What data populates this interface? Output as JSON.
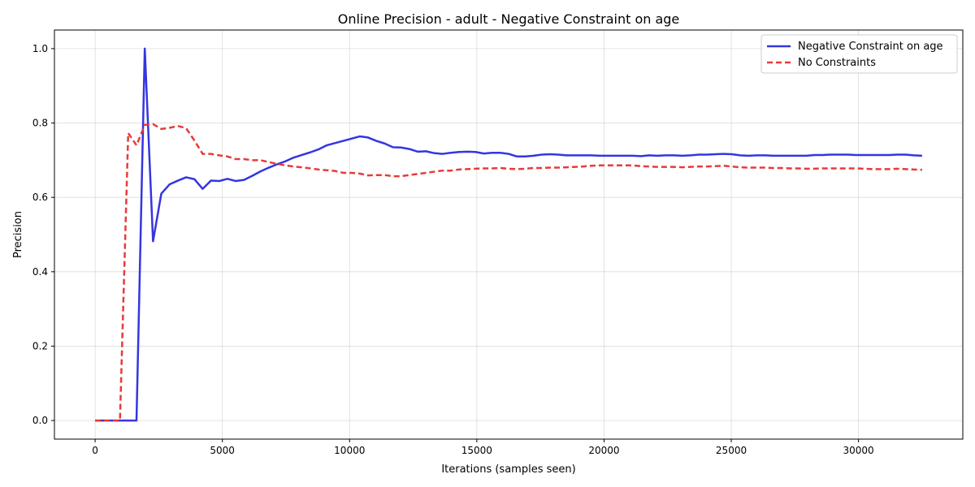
{
  "chart_data": {
    "type": "line",
    "title": "Online Precision - adult - Negative Constraint on age",
    "xlabel": "Iterations (samples seen)",
    "ylabel": "Precision",
    "xlim": [
      -1600,
      34100
    ],
    "ylim": [
      -0.05,
      1.05
    ],
    "xticks": [
      0,
      5000,
      10000,
      15000,
      20000,
      25000,
      30000
    ],
    "yticks": [
      0.0,
      0.2,
      0.4,
      0.6,
      0.8,
      1.0
    ],
    "xtick_labels": [
      "0",
      "5000",
      "10000",
      "15000",
      "20000",
      "25000",
      "30000"
    ],
    "ytick_labels": [
      "0.0",
      "0.2",
      "0.4",
      "0.6",
      "0.8",
      "1.0"
    ],
    "grid": true,
    "legend_position": "top-right",
    "series": [
      {
        "name": "Negative Constraint on age",
        "color": "#3535e0",
        "style": "solid",
        "points": [
          [
            0,
            0
          ],
          [
            325,
            0
          ],
          [
            650,
            0
          ],
          [
            975,
            0
          ],
          [
            1300,
            0
          ],
          [
            1625,
            0
          ],
          [
            1950,
            1.0
          ],
          [
            2275,
            0.482
          ],
          [
            2600,
            0.61
          ],
          [
            2925,
            0.635
          ],
          [
            3250,
            0.645
          ],
          [
            3575,
            0.654
          ],
          [
            3900,
            0.649
          ],
          [
            4225,
            0.623
          ],
          [
            4550,
            0.645
          ],
          [
            4875,
            0.644
          ],
          [
            5200,
            0.65
          ],
          [
            5525,
            0.644
          ],
          [
            5850,
            0.647
          ],
          [
            6175,
            0.658
          ],
          [
            6500,
            0.67
          ],
          [
            6825,
            0.68
          ],
          [
            7150,
            0.689
          ],
          [
            7475,
            0.697
          ],
          [
            7800,
            0.707
          ],
          [
            8125,
            0.714
          ],
          [
            8450,
            0.721
          ],
          [
            8775,
            0.729
          ],
          [
            9100,
            0.74
          ],
          [
            9425,
            0.746
          ],
          [
            9750,
            0.752
          ],
          [
            10075,
            0.758
          ],
          [
            10400,
            0.764
          ],
          [
            10725,
            0.761
          ],
          [
            11050,
            0.752
          ],
          [
            11375,
            0.745
          ],
          [
            11700,
            0.735
          ],
          [
            12025,
            0.734
          ],
          [
            12350,
            0.73
          ],
          [
            12675,
            0.723
          ],
          [
            13000,
            0.724
          ],
          [
            13325,
            0.719
          ],
          [
            13650,
            0.717
          ],
          [
            13975,
            0.72
          ],
          [
            14300,
            0.722
          ],
          [
            14625,
            0.723
          ],
          [
            14950,
            0.722
          ],
          [
            15275,
            0.718
          ],
          [
            15600,
            0.72
          ],
          [
            15925,
            0.72
          ],
          [
            16250,
            0.717
          ],
          [
            16575,
            0.71
          ],
          [
            16900,
            0.71
          ],
          [
            17225,
            0.712
          ],
          [
            17550,
            0.715
          ],
          [
            17875,
            0.716
          ],
          [
            18200,
            0.715
          ],
          [
            18525,
            0.713
          ],
          [
            18850,
            0.713
          ],
          [
            19175,
            0.713
          ],
          [
            19500,
            0.713
          ],
          [
            19825,
            0.712
          ],
          [
            20150,
            0.712
          ],
          [
            20475,
            0.712
          ],
          [
            20800,
            0.712
          ],
          [
            21125,
            0.712
          ],
          [
            21450,
            0.711
          ],
          [
            21775,
            0.713
          ],
          [
            22100,
            0.712
          ],
          [
            22425,
            0.713
          ],
          [
            22750,
            0.713
          ],
          [
            23075,
            0.712
          ],
          [
            23400,
            0.713
          ],
          [
            23725,
            0.715
          ],
          [
            24050,
            0.715
          ],
          [
            24375,
            0.716
          ],
          [
            24700,
            0.717
          ],
          [
            25025,
            0.716
          ],
          [
            25350,
            0.713
          ],
          [
            25675,
            0.712
          ],
          [
            26000,
            0.713
          ],
          [
            26325,
            0.713
          ],
          [
            26650,
            0.712
          ],
          [
            26975,
            0.712
          ],
          [
            27300,
            0.712
          ],
          [
            27625,
            0.712
          ],
          [
            27950,
            0.712
          ],
          [
            28275,
            0.714
          ],
          [
            28600,
            0.714
          ],
          [
            28925,
            0.715
          ],
          [
            29250,
            0.715
          ],
          [
            29575,
            0.715
          ],
          [
            29900,
            0.714
          ],
          [
            30225,
            0.714
          ],
          [
            30550,
            0.714
          ],
          [
            30875,
            0.714
          ],
          [
            31200,
            0.714
          ],
          [
            31525,
            0.715
          ],
          [
            31850,
            0.715
          ],
          [
            32175,
            0.713
          ],
          [
            32500,
            0.712
          ]
        ]
      },
      {
        "name": "No Constraints",
        "color": "#e83a3a",
        "style": "dashed",
        "points": [
          [
            0,
            0
          ],
          [
            325,
            0
          ],
          [
            650,
            0
          ],
          [
            975,
            0
          ],
          [
            1300,
            0.773
          ],
          [
            1625,
            0.74
          ],
          [
            1950,
            0.795
          ],
          [
            2275,
            0.797
          ],
          [
            2600,
            0.784
          ],
          [
            2925,
            0.787
          ],
          [
            3250,
            0.792
          ],
          [
            3575,
            0.786
          ],
          [
            3900,
            0.753
          ],
          [
            4225,
            0.717
          ],
          [
            4550,
            0.717
          ],
          [
            4875,
            0.713
          ],
          [
            5200,
            0.71
          ],
          [
            5525,
            0.703
          ],
          [
            5850,
            0.703
          ],
          [
            6175,
            0.7
          ],
          [
            6500,
            0.7
          ],
          [
            6825,
            0.695
          ],
          [
            7150,
            0.69
          ],
          [
            7475,
            0.686
          ],
          [
            7800,
            0.683
          ],
          [
            8125,
            0.681
          ],
          [
            8450,
            0.678
          ],
          [
            8775,
            0.675
          ],
          [
            9100,
            0.673
          ],
          [
            9425,
            0.671
          ],
          [
            9750,
            0.666
          ],
          [
            10075,
            0.666
          ],
          [
            10400,
            0.664
          ],
          [
            10725,
            0.659
          ],
          [
            11050,
            0.66
          ],
          [
            11375,
            0.66
          ],
          [
            11700,
            0.657
          ],
          [
            12025,
            0.657
          ],
          [
            12350,
            0.66
          ],
          [
            12675,
            0.663
          ],
          [
            13000,
            0.666
          ],
          [
            13325,
            0.669
          ],
          [
            13650,
            0.672
          ],
          [
            13975,
            0.672
          ],
          [
            14300,
            0.675
          ],
          [
            14625,
            0.676
          ],
          [
            14950,
            0.677
          ],
          [
            15275,
            0.678
          ],
          [
            15600,
            0.678
          ],
          [
            15925,
            0.679
          ],
          [
            16250,
            0.677
          ],
          [
            16575,
            0.676
          ],
          [
            16900,
            0.677
          ],
          [
            17225,
            0.679
          ],
          [
            17550,
            0.679
          ],
          [
            17875,
            0.68
          ],
          [
            18200,
            0.68
          ],
          [
            18525,
            0.681
          ],
          [
            18850,
            0.682
          ],
          [
            19175,
            0.683
          ],
          [
            19500,
            0.685
          ],
          [
            19825,
            0.686
          ],
          [
            20150,
            0.686
          ],
          [
            20475,
            0.686
          ],
          [
            20800,
            0.686
          ],
          [
            21125,
            0.686
          ],
          [
            21450,
            0.684
          ],
          [
            21775,
            0.683
          ],
          [
            22100,
            0.682
          ],
          [
            22425,
            0.682
          ],
          [
            22750,
            0.682
          ],
          [
            23075,
            0.681
          ],
          [
            23400,
            0.682
          ],
          [
            23725,
            0.683
          ],
          [
            24050,
            0.683
          ],
          [
            24375,
            0.684
          ],
          [
            24700,
            0.685
          ],
          [
            25025,
            0.683
          ],
          [
            25350,
            0.681
          ],
          [
            25675,
            0.68
          ],
          [
            26000,
            0.68
          ],
          [
            26325,
            0.68
          ],
          [
            26650,
            0.679
          ],
          [
            26975,
            0.679
          ],
          [
            27300,
            0.678
          ],
          [
            27625,
            0.678
          ],
          [
            27950,
            0.677
          ],
          [
            28275,
            0.677
          ],
          [
            28600,
            0.678
          ],
          [
            28925,
            0.678
          ],
          [
            29250,
            0.678
          ],
          [
            29575,
            0.678
          ],
          [
            29900,
            0.678
          ],
          [
            30225,
            0.677
          ],
          [
            30550,
            0.676
          ],
          [
            30875,
            0.676
          ],
          [
            31200,
            0.676
          ],
          [
            31525,
            0.677
          ],
          [
            31850,
            0.676
          ],
          [
            32175,
            0.675
          ],
          [
            32500,
            0.674
          ]
        ]
      }
    ]
  }
}
